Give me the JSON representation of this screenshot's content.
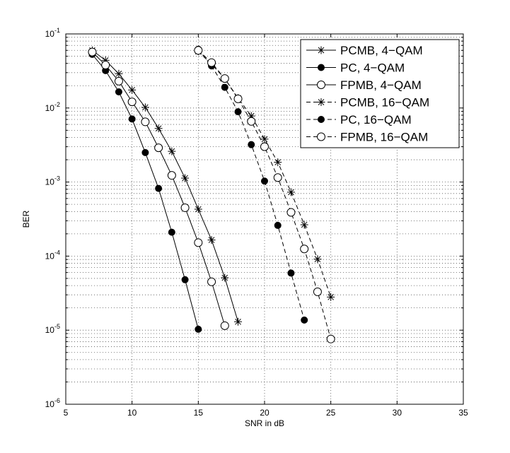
{
  "chart_data": {
    "type": "line",
    "title": "",
    "xlabel": "SNR in dB",
    "ylabel": "BER",
    "xlim": [
      5,
      35
    ],
    "ylim": [
      1e-06,
      0.1
    ],
    "yscale": "log",
    "grid": true,
    "legend_position": "top-right",
    "xticks": [
      "5",
      "10",
      "15",
      "20",
      "25",
      "30",
      "35"
    ],
    "yticks": [
      {
        "base": "10",
        "exp": "-6"
      },
      {
        "base": "10",
        "exp": "-5"
      },
      {
        "base": "10",
        "exp": "-4"
      },
      {
        "base": "10",
        "exp": "-3"
      },
      {
        "base": "10",
        "exp": "-2"
      },
      {
        "base": "10",
        "exp": "-1"
      }
    ],
    "series": [
      {
        "name": "PCMB, 4−QAM",
        "line": "solid",
        "marker": "star",
        "x": [
          7,
          8,
          9,
          10,
          11,
          12,
          13,
          14,
          15,
          16,
          17,
          18
        ],
        "y": [
          0.06,
          0.044,
          0.029,
          0.0175,
          0.0102,
          0.0053,
          0.0026,
          0.00113,
          0.00043,
          0.000165,
          5.1e-05,
          1.3e-05
        ]
      },
      {
        "name": "PC, 4−QAM",
        "line": "solid",
        "marker": "filled-circle",
        "x": [
          7,
          8,
          9,
          10,
          11,
          12,
          13,
          14,
          15
        ],
        "y": [
          0.053,
          0.032,
          0.0165,
          0.0071,
          0.0025,
          0.00082,
          0.00021,
          4.8e-05,
          1.03e-05
        ]
      },
      {
        "name": "FPMB, 4−QAM",
        "line": "solid",
        "marker": "open-circle",
        "x": [
          7,
          8,
          9,
          10,
          11,
          12,
          13,
          14,
          15,
          16,
          17
        ],
        "y": [
          0.057,
          0.038,
          0.023,
          0.0121,
          0.0065,
          0.0029,
          0.00123,
          0.00045,
          0.000152,
          4.5e-05,
          1.15e-05
        ]
      },
      {
        "name": "PCMB, 16−QAM",
        "line": "dashed",
        "marker": "star",
        "x": [
          15,
          16,
          17,
          18,
          19,
          20,
          21,
          22,
          23,
          24,
          25
        ],
        "y": [
          0.058,
          0.039,
          0.025,
          0.0136,
          0.0078,
          0.0038,
          0.00185,
          0.00073,
          0.000265,
          9.1e-05,
          2.8e-05
        ]
      },
      {
        "name": "PC, 16−QAM",
        "line": "dashed",
        "marker": "filled-circle",
        "x": [
          15,
          16,
          17,
          18,
          19,
          20,
          21,
          22,
          23
        ],
        "y": [
          0.062,
          0.037,
          0.019,
          0.0089,
          0.0032,
          0.00103,
          0.00026,
          5.9e-05,
          1.37e-05
        ]
      },
      {
        "name": "FPMB, 16−QAM",
        "line": "dashed",
        "marker": "open-circle",
        "x": [
          15,
          16,
          17,
          18,
          19,
          20,
          21,
          22,
          23,
          24,
          25
        ],
        "y": [
          0.06,
          0.041,
          0.025,
          0.0133,
          0.0066,
          0.003,
          0.00115,
          0.00039,
          0.000125,
          3.3e-05,
          7.6e-06
        ]
      }
    ]
  }
}
